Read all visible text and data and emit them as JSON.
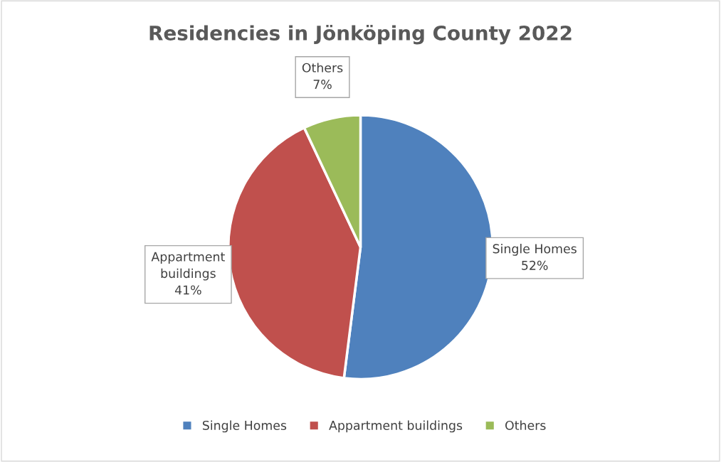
{
  "chart_data": {
    "type": "pie",
    "title": "Residencies in Jönköping County 2022",
    "categories": [
      "Single Homes",
      "Appartment buildings",
      "Others"
    ],
    "values": [
      52,
      41,
      7
    ],
    "colors": [
      "#4f81bd",
      "#c0504d",
      "#9bbb59"
    ],
    "value_labels": [
      "52%",
      "41%",
      "7%"
    ],
    "legend": "bottom"
  }
}
